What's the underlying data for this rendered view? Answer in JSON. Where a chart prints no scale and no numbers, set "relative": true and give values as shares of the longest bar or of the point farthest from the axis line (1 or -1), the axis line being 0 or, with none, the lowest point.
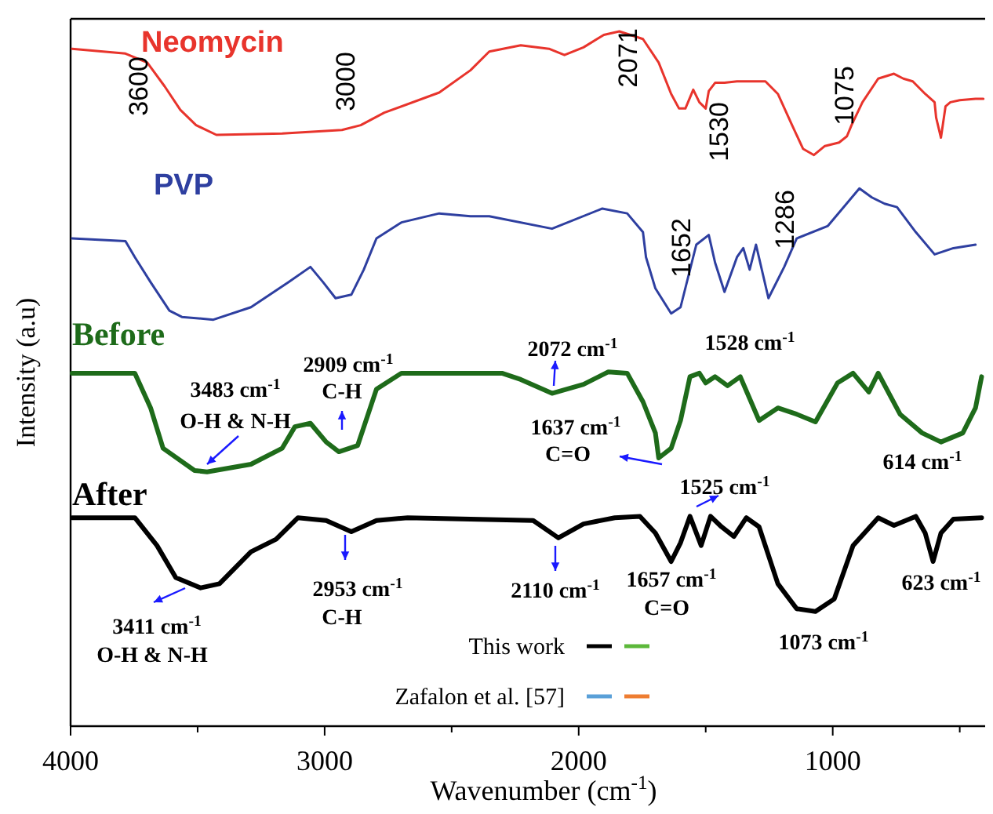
{
  "chart_data": {
    "type": "line",
    "xlabel": "Wavenumber (cm$^{-1}$)",
    "ylabel": "Intensity (a.u)",
    "relative": true,
    "xlim": [
      4000,
      400
    ],
    "xticks": [
      4000,
      {
        "value": 3500,
        "label": null
      },
      3000,
      {
        "value": 2500,
        "label": null
      },
      2000,
      {
        "value": 1500,
        "label": null
      },
      1000,
      {
        "value": 500,
        "label": null
      }
    ],
    "grid": false,
    "legend": false,
    "marker": "none",
    "line_style": "solid",
    "series": [
      {
        "name": "Neomycin",
        "color": "#e8342c",
        "x": [
          3994,
          3784,
          3698,
          3630,
          3568,
          3506,
          3426,
          3167,
          2932,
          2858,
          2765,
          2549,
          2426,
          2352,
          2228,
          2117,
          2056,
          1981,
          1901,
          1840,
          1747,
          1685,
          1636,
          1605,
          1580,
          1549,
          1525,
          1500,
          1488,
          1463,
          1426,
          1377,
          1315,
          1265,
          1216,
          1160,
          1117,
          1074,
          1031,
          975,
          944,
          926,
          883,
          821,
          759,
          722,
          685,
          636,
          599,
          593,
          574,
          556,
          537,
          500,
          438,
          407
        ],
        "values": [
          0.975,
          0.968,
          0.955,
          0.921,
          0.887,
          0.865,
          0.851,
          0.853,
          0.858,
          0.865,
          0.883,
          0.912,
          0.944,
          0.971,
          0.98,
          0.975,
          0.966,
          0.977,
          0.995,
          1.0,
          0.989,
          0.955,
          0.91,
          0.889,
          0.889,
          0.916,
          0.898,
          0.889,
          0.914,
          0.926,
          0.926,
          0.928,
          0.928,
          0.928,
          0.91,
          0.865,
          0.831,
          0.822,
          0.835,
          0.84,
          0.849,
          0.865,
          0.898,
          0.932,
          0.939,
          0.932,
          0.928,
          0.91,
          0.898,
          0.876,
          0.847,
          0.892,
          0.898,
          0.901,
          0.903,
          0.903
        ]
      },
      {
        "name": "PVP",
        "color": "#2e3fa0",
        "x": [
          3994,
          3784,
          3747,
          3685,
          3611,
          3562,
          3438,
          3290,
          3142,
          3056,
          3006,
          2957,
          2895,
          2846,
          2796,
          2698,
          2549,
          2426,
          2352,
          2105,
          1907,
          1809,
          1747,
          1735,
          1698,
          1636,
          1599,
          1537,
          1488,
          1463,
          1426,
          1377,
          1352,
          1327,
          1302,
          1253,
          1191,
          1142,
          1019,
          895,
          846,
          796,
          747,
          673,
          599,
          525,
          438
        ],
        "values": [
          0.702,
          0.698,
          0.675,
          0.639,
          0.598,
          0.589,
          0.585,
          0.603,
          0.639,
          0.661,
          0.639,
          0.616,
          0.621,
          0.657,
          0.702,
          0.725,
          0.738,
          0.734,
          0.734,
          0.716,
          0.745,
          0.738,
          0.711,
          0.675,
          0.63,
          0.594,
          0.603,
          0.693,
          0.707,
          0.667,
          0.625,
          0.675,
          0.688,
          0.657,
          0.693,
          0.616,
          0.661,
          0.702,
          0.72,
          0.774,
          0.761,
          0.752,
          0.747,
          0.711,
          0.679,
          0.688,
          0.693
        ]
      },
      {
        "name": "Before",
        "color": "#1e6b1a",
        "x": [
          3994,
          3747,
          3685,
          3636,
          3512,
          3463,
          3290,
          3167,
          3117,
          3056,
          2994,
          2944,
          2870,
          2796,
          2698,
          2302,
          2228,
          2105,
          1981,
          1883,
          1809,
          1747,
          1698,
          1685,
          1636,
          1599,
          1562,
          1525,
          1500,
          1463,
          1414,
          1364,
          1290,
          1216,
          1142,
          1068,
          981,
          920,
          858,
          821,
          735,
          648,
          574,
          488,
          438,
          414
        ],
        "values": [
          0.508,
          0.508,
          0.458,
          0.4,
          0.368,
          0.366,
          0.377,
          0.4,
          0.431,
          0.436,
          0.409,
          0.395,
          0.404,
          0.485,
          0.508,
          0.508,
          0.499,
          0.479,
          0.492,
          0.51,
          0.508,
          0.467,
          0.422,
          0.386,
          0.4,
          0.44,
          0.503,
          0.508,
          0.494,
          0.503,
          0.49,
          0.503,
          0.44,
          0.458,
          0.449,
          0.438,
          0.494,
          0.508,
          0.481,
          0.508,
          0.449,
          0.422,
          0.409,
          0.422,
          0.458,
          0.503
        ]
      },
      {
        "name": "After",
        "color": "#000000",
        "x": [
          3994,
          3747,
          3660,
          3586,
          3488,
          3414,
          3290,
          3191,
          3105,
          2994,
          2895,
          2796,
          2673,
          2179,
          2080,
          1981,
          1858,
          1759,
          1698,
          1636,
          1599,
          1562,
          1518,
          1481,
          1438,
          1389,
          1340,
          1290,
          1216,
          1142,
          1068,
          994,
          920,
          821,
          759,
          673,
          636,
          605,
          574,
          525,
          414
        ],
        "values": [
          0.3,
          0.3,
          0.26,
          0.214,
          0.199,
          0.205,
          0.251,
          0.269,
          0.3,
          0.296,
          0.28,
          0.296,
          0.3,
          0.296,
          0.271,
          0.291,
          0.3,
          0.302,
          0.278,
          0.237,
          0.264,
          0.302,
          0.26,
          0.302,
          0.287,
          0.273,
          0.3,
          0.287,
          0.205,
          0.169,
          0.165,
          0.183,
          0.26,
          0.3,
          0.289,
          0.302,
          0.278,
          0.237,
          0.278,
          0.298,
          0.3
        ]
      }
    ],
    "annotations": [
      "3600",
      "3000",
      "2071",
      "1530",
      "1075",
      "1652",
      "1286",
      "3483 cm$^{-1}$",
      "O-H & N-H",
      "2909 cm$^{-1}$",
      "C-H",
      "2072 cm$^{-1}$",
      "1528 cm$^{-1}$",
      "1637 cm$^{-1}$",
      "C=O",
      "614 cm$^{-1}$",
      "1525 cm$^{-1}$",
      "3411 cm$^{-1}$",
      "O-H & N-H",
      "2953 cm$^{-1}$",
      "C-H",
      "2110 cm$^{-1}$",
      "1657 cm$^{-1}$",
      "C=O",
      "1073 cm$^{-1}$",
      "623 cm$^{-1}$",
      "This work",
      "Zafalon et al. [57]"
    ]
  }
}
